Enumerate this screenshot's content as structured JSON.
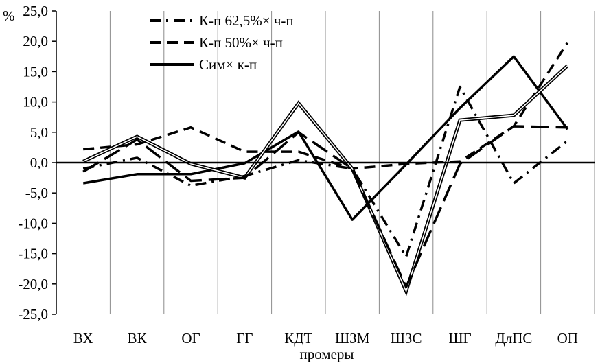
{
  "chart_data": {
    "type": "line",
    "title": "",
    "ylabel": "%",
    "xlabel": "промеры",
    "ylim": [
      -25,
      25
    ],
    "ytick_step": 5,
    "ytick_labels": [
      "-25,0",
      "-20,0",
      "-15,0",
      "-10,0",
      "-5,0",
      "0,0",
      "5,0",
      "10,0",
      "15,0",
      "20,0",
      "25,0"
    ],
    "grid": "vertical",
    "legend_position": "top-left",
    "categories": [
      "ВХ",
      "ВК",
      "ОГ",
      "ГГ",
      "КДТ",
      "ШЗМ",
      "ШЗС",
      "ШГ",
      "ДлПС",
      "ОП"
    ],
    "series": [
      {
        "name": "К-п 62,5%× ч-п",
        "style": "dash-dot",
        "values": [
          -1.0,
          0.8,
          -3.8,
          -2.2,
          0.4,
          -1.0,
          -15.5,
          12.5,
          -3.4,
          3.6
        ]
      },
      {
        "name": "К-п 50%× ч-п",
        "style": "dashed",
        "values": [
          2.2,
          3.0,
          5.8,
          1.8,
          1.8,
          -1.0,
          -0.2,
          0.2,
          6.0,
          19.8
        ]
      },
      {
        "name": "Сим× к-п",
        "style": "solid",
        "values": [
          -3.4,
          -1.9,
          -1.9,
          -0.1,
          5.1,
          -9.4,
          -0.3,
          9.0,
          17.5,
          5.5
        ]
      },
      {
        "name": "",
        "style": "double",
        "values": [
          0.2,
          4.3,
          -0.2,
          -2.5,
          9.8,
          -1.0,
          -21.2,
          7.0,
          7.8,
          16.0
        ]
      },
      {
        "name": "",
        "style": "long-dash",
        "values": [
          -1.5,
          3.8,
          -3.0,
          -2.5,
          5.0,
          -1.0,
          -20.5,
          -0.2,
          6.0,
          5.8
        ]
      }
    ]
  }
}
